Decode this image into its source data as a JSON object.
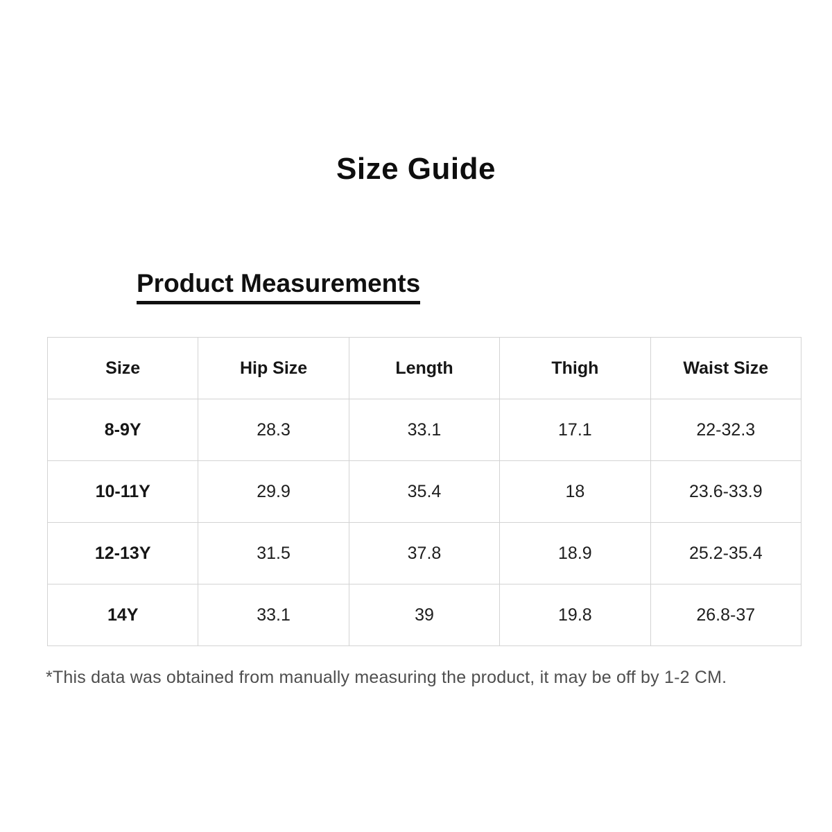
{
  "page": {
    "title": "Size Guide",
    "section_heading": "Product Measurements",
    "footnote": "*This data was obtained from manually measuring the product, it may be off by 1-2 CM.",
    "background_color": "#ffffff",
    "text_color": "#1e1e1e",
    "table_border_color": "#d3d3d3"
  },
  "table": {
    "headers": [
      "Size",
      "Hip Size",
      "Length",
      "Thigh",
      "Waist Size"
    ],
    "rows": [
      [
        "8-9Y",
        "28.3",
        "33.1",
        "17.1",
        "22-32.3"
      ],
      [
        "10-11Y",
        "29.9",
        "35.4",
        "18",
        "23.6-33.9"
      ],
      [
        "12-13Y",
        "31.5",
        "37.8",
        "18.9",
        "25.2-35.4"
      ],
      [
        "14Y",
        "33.1",
        "39",
        "19.8",
        "26.8-37"
      ]
    ]
  }
}
